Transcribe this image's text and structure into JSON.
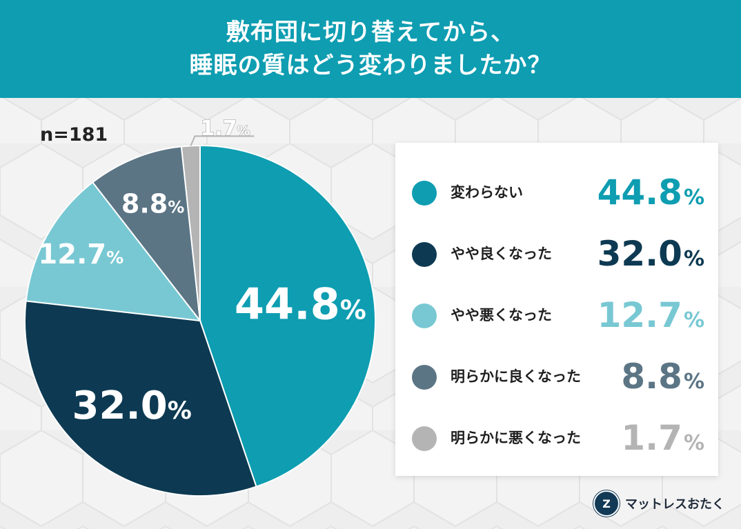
{
  "header": {
    "line1": "敷布団に切り替えてから、",
    "line2": "睡眠の質はどう変わりましたか？"
  },
  "sample_size": "n=181",
  "chart_data": {
    "type": "pie",
    "title": "敷布団に切り替えてから、睡眠の質はどう変わりましたか？",
    "unit": "%",
    "start": "12 o'clock, clockwise",
    "series": [
      {
        "name": "変わらない",
        "value": 44.8,
        "label": "44.8",
        "color": "#0e9db1",
        "label_color": "#ffffff"
      },
      {
        "name": "やや良くなった",
        "value": 32.0,
        "label": "32.0",
        "color": "#0d3a52",
        "label_color": "#ffffff"
      },
      {
        "name": "やや悪くなった",
        "value": 12.7,
        "label": "12.7",
        "color": "#78c8d3",
        "label_color": "#ffffff"
      },
      {
        "name": "明らかに良くなった",
        "value": 8.8,
        "label": "8.8",
        "color": "#5b7585",
        "label_color": "#ffffff"
      },
      {
        "name": "明らかに悪くなった",
        "value": 1.7,
        "label": "1.7",
        "color": "#b4b4b4",
        "label_color": "#b4b4b4"
      }
    ]
  },
  "legend": {
    "items": [
      {
        "label": "変わらない",
        "value": "44.8",
        "unit": "%",
        "color": "#0e9db1"
      },
      {
        "label": "やや良くなった",
        "value": "32.0",
        "unit": "%",
        "color": "#0d3a52"
      },
      {
        "label": "やや悪くなった",
        "value": "12.7",
        "unit": "%",
        "color": "#78c8d3"
      },
      {
        "label": "明らかに良くなった",
        "value": "8.8",
        "unit": "%",
        "color": "#5b7585"
      },
      {
        "label": "明らかに悪くなった",
        "value": "1.7",
        "unit": "%",
        "color": "#b4b4b4"
      }
    ]
  },
  "brand": {
    "name": "マットレスおたく",
    "logo_icon": "mattress-otaku-logo-icon"
  }
}
